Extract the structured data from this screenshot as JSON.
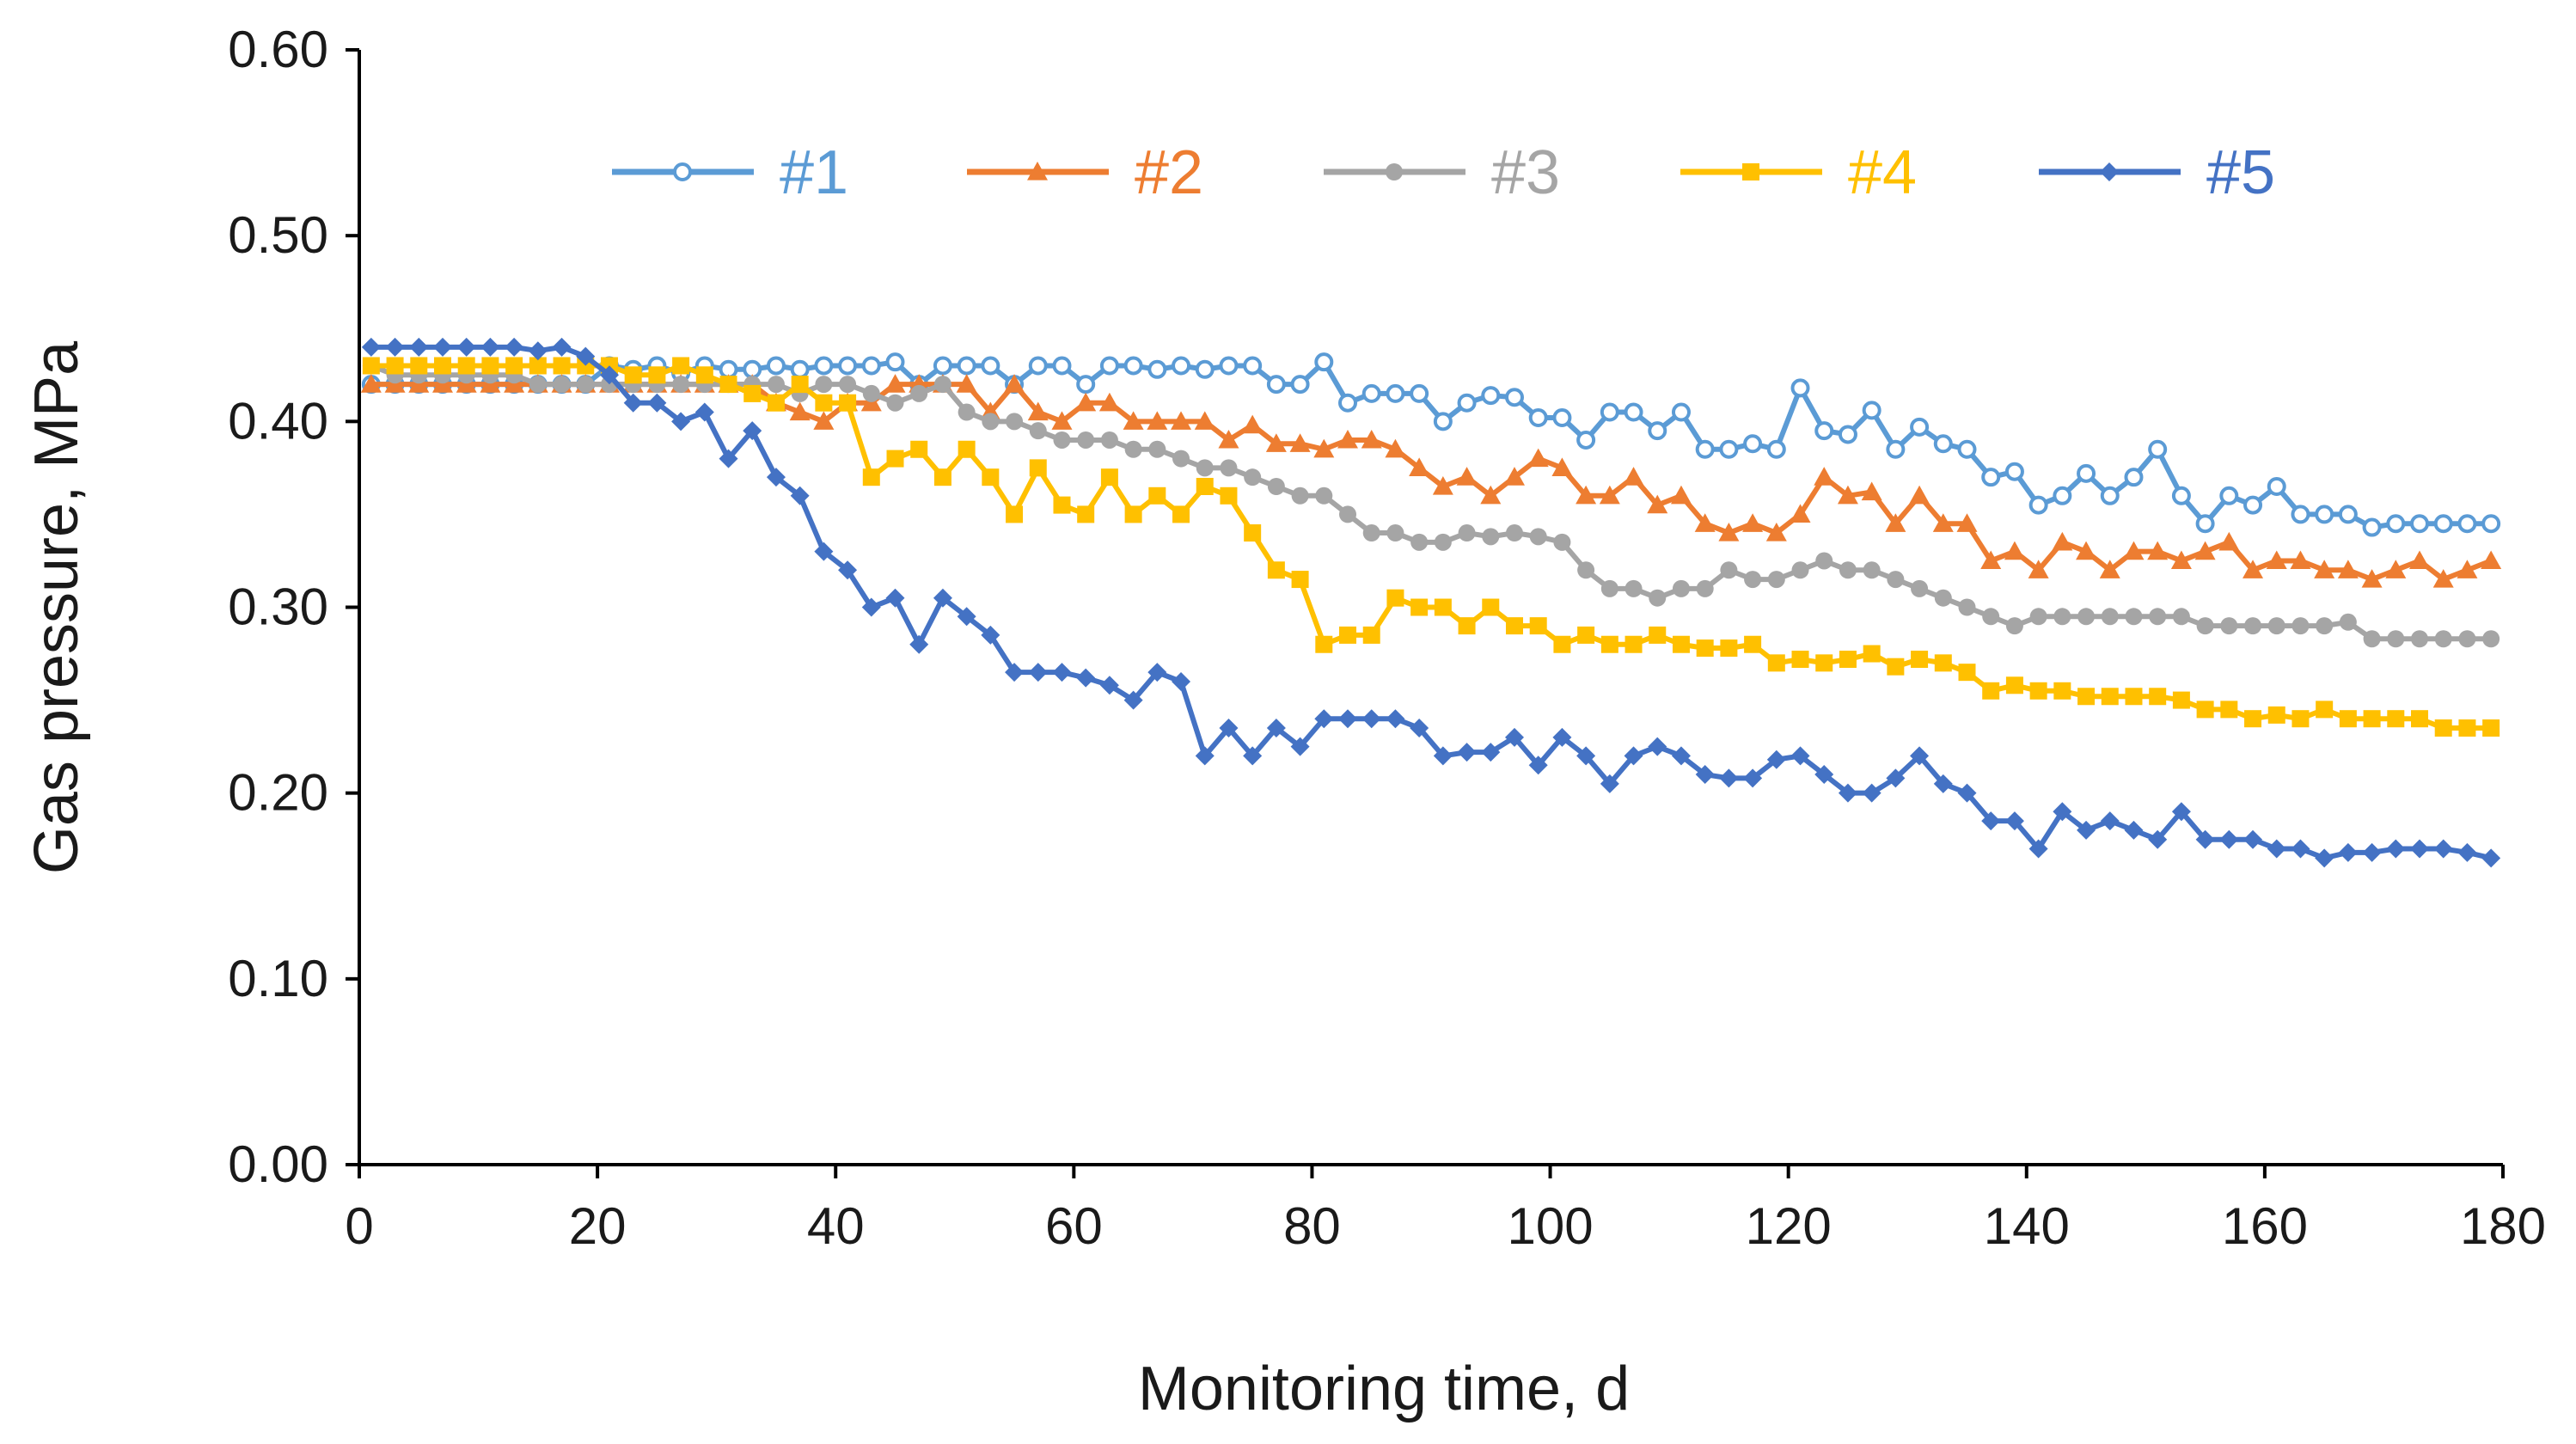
{
  "chart_data": {
    "type": "line",
    "title": "",
    "xlabel": "Monitoring time, d",
    "ylabel": "Gas pressure, MPa",
    "xlim": [
      0,
      180
    ],
    "ylim": [
      0,
      0.6
    ],
    "xticks": [
      0,
      20,
      40,
      60,
      80,
      100,
      120,
      140,
      160,
      180
    ],
    "xtick_labels": [
      "0",
      "20",
      "40",
      "60",
      "80",
      "100",
      "120",
      "140",
      "160",
      "180"
    ],
    "yticks": [
      0,
      0.1,
      0.2,
      0.3,
      0.4,
      0.5,
      0.6
    ],
    "ytick_labels": [
      "0.00",
      "0.10",
      "0.20",
      "0.30",
      "0.40",
      "0.50",
      "0.60"
    ],
    "grid": false,
    "legend_position": "top",
    "x": [
      1,
      3,
      5,
      7,
      9,
      11,
      13,
      15,
      17,
      19,
      21,
      23,
      25,
      27,
      29,
      31,
      33,
      35,
      37,
      39,
      41,
      43,
      45,
      47,
      49,
      51,
      53,
      55,
      57,
      59,
      61,
      63,
      65,
      67,
      69,
      71,
      73,
      75,
      77,
      79,
      81,
      83,
      85,
      87,
      89,
      91,
      93,
      95,
      97,
      99,
      101,
      103,
      105,
      107,
      109,
      111,
      113,
      115,
      117,
      119,
      121,
      123,
      125,
      127,
      129,
      131,
      133,
      135,
      137,
      139,
      141,
      143,
      145,
      147,
      149,
      151,
      153,
      155,
      157,
      159,
      161,
      163,
      165,
      167,
      169,
      171,
      173,
      175,
      177,
      179
    ],
    "series": [
      {
        "name": "#1",
        "color": "#5b9bd5",
        "marker": "open-circle",
        "values": [
          0.42,
          0.42,
          0.42,
          0.42,
          0.42,
          0.42,
          0.42,
          0.42,
          0.42,
          0.42,
          0.43,
          0.428,
          0.43,
          0.426,
          0.43,
          0.428,
          0.428,
          0.43,
          0.428,
          0.43,
          0.43,
          0.43,
          0.432,
          0.42,
          0.43,
          0.43,
          0.43,
          0.42,
          0.43,
          0.43,
          0.42,
          0.43,
          0.43,
          0.428,
          0.43,
          0.428,
          0.43,
          0.43,
          0.42,
          0.42,
          0.432,
          0.41,
          0.415,
          0.415,
          0.415,
          0.4,
          0.41,
          0.414,
          0.413,
          0.402,
          0.402,
          0.39,
          0.405,
          0.405,
          0.395,
          0.405,
          0.385,
          0.385,
          0.388,
          0.385,
          0.418,
          0.395,
          0.393,
          0.406,
          0.385,
          0.397,
          0.388,
          0.385,
          0.37,
          0.373,
          0.355,
          0.36,
          0.372,
          0.36,
          0.37,
          0.385,
          0.36,
          0.345,
          0.36,
          0.355,
          0.365,
          0.35,
          0.35,
          0.35,
          0.343,
          0.345,
          0.345,
          0.345,
          0.345,
          0.345
        ]
      },
      {
        "name": "#2",
        "color": "#ed7d31",
        "marker": "triangle",
        "values": [
          0.42,
          0.42,
          0.42,
          0.42,
          0.42,
          0.42,
          0.42,
          0.42,
          0.42,
          0.42,
          0.42,
          0.42,
          0.42,
          0.42,
          0.42,
          0.42,
          0.42,
          0.41,
          0.405,
          0.4,
          0.41,
          0.41,
          0.42,
          0.42,
          0.42,
          0.42,
          0.405,
          0.42,
          0.405,
          0.4,
          0.41,
          0.41,
          0.4,
          0.4,
          0.4,
          0.4,
          0.39,
          0.398,
          0.388,
          0.388,
          0.385,
          0.39,
          0.39,
          0.385,
          0.375,
          0.365,
          0.37,
          0.36,
          0.37,
          0.38,
          0.375,
          0.36,
          0.36,
          0.37,
          0.355,
          0.36,
          0.345,
          0.34,
          0.345,
          0.34,
          0.35,
          0.37,
          0.36,
          0.362,
          0.345,
          0.36,
          0.345,
          0.345,
          0.325,
          0.33,
          0.32,
          0.335,
          0.33,
          0.32,
          0.33,
          0.33,
          0.325,
          0.33,
          0.335,
          0.32,
          0.325,
          0.325,
          0.32,
          0.32,
          0.315,
          0.32,
          0.325,
          0.315,
          0.32,
          0.325
        ]
      },
      {
        "name": "#3",
        "color": "#a5a5a5",
        "marker": "filled-circle",
        "values": [
          0.43,
          0.425,
          0.425,
          0.425,
          0.425,
          0.425,
          0.425,
          0.42,
          0.42,
          0.42,
          0.42,
          0.42,
          0.42,
          0.42,
          0.42,
          0.42,
          0.42,
          0.42,
          0.415,
          0.42,
          0.42,
          0.415,
          0.41,
          0.415,
          0.42,
          0.405,
          0.4,
          0.4,
          0.395,
          0.39,
          0.39,
          0.39,
          0.385,
          0.385,
          0.38,
          0.375,
          0.375,
          0.37,
          0.365,
          0.36,
          0.36,
          0.35,
          0.34,
          0.34,
          0.335,
          0.335,
          0.34,
          0.338,
          0.34,
          0.338,
          0.335,
          0.32,
          0.31,
          0.31,
          0.305,
          0.31,
          0.31,
          0.32,
          0.315,
          0.315,
          0.32,
          0.325,
          0.32,
          0.32,
          0.315,
          0.31,
          0.305,
          0.3,
          0.295,
          0.29,
          0.295,
          0.295,
          0.295,
          0.295,
          0.295,
          0.295,
          0.295,
          0.29,
          0.29,
          0.29,
          0.29,
          0.29,
          0.29,
          0.292,
          0.283,
          0.283,
          0.283,
          0.283,
          0.283,
          0.283
        ]
      },
      {
        "name": "#4",
        "color": "#ffc000",
        "marker": "square",
        "values": [
          0.43,
          0.43,
          0.43,
          0.43,
          0.43,
          0.43,
          0.43,
          0.43,
          0.43,
          0.43,
          0.43,
          0.425,
          0.425,
          0.43,
          0.425,
          0.42,
          0.415,
          0.41,
          0.42,
          0.41,
          0.41,
          0.37,
          0.38,
          0.385,
          0.37,
          0.385,
          0.37,
          0.35,
          0.375,
          0.355,
          0.35,
          0.37,
          0.35,
          0.36,
          0.35,
          0.365,
          0.36,
          0.34,
          0.32,
          0.315,
          0.28,
          0.285,
          0.285,
          0.305,
          0.3,
          0.3,
          0.29,
          0.3,
          0.29,
          0.29,
          0.28,
          0.285,
          0.28,
          0.28,
          0.285,
          0.28,
          0.278,
          0.278,
          0.28,
          0.27,
          0.272,
          0.27,
          0.272,
          0.275,
          0.268,
          0.272,
          0.27,
          0.265,
          0.255,
          0.258,
          0.255,
          0.255,
          0.252,
          0.252,
          0.252,
          0.252,
          0.25,
          0.245,
          0.245,
          0.24,
          0.242,
          0.24,
          0.245,
          0.24,
          0.24,
          0.24,
          0.24,
          0.235,
          0.235,
          0.235
        ]
      },
      {
        "name": "#5",
        "color": "#4472c4",
        "marker": "diamond",
        "values": [
          0.44,
          0.44,
          0.44,
          0.44,
          0.44,
          0.44,
          0.44,
          0.438,
          0.44,
          0.435,
          0.425,
          0.41,
          0.41,
          0.4,
          0.405,
          0.38,
          0.395,
          0.37,
          0.36,
          0.33,
          0.32,
          0.3,
          0.305,
          0.28,
          0.305,
          0.295,
          0.285,
          0.265,
          0.265,
          0.265,
          0.262,
          0.258,
          0.25,
          0.265,
          0.26,
          0.22,
          0.235,
          0.22,
          0.235,
          0.225,
          0.24,
          0.24,
          0.24,
          0.24,
          0.235,
          0.22,
          0.222,
          0.222,
          0.23,
          0.215,
          0.23,
          0.22,
          0.205,
          0.22,
          0.225,
          0.22,
          0.21,
          0.208,
          0.208,
          0.218,
          0.22,
          0.21,
          0.2,
          0.2,
          0.208,
          0.22,
          0.205,
          0.2,
          0.185,
          0.185,
          0.17,
          0.19,
          0.18,
          0.185,
          0.18,
          0.175,
          0.19,
          0.175,
          0.175,
          0.175,
          0.17,
          0.17,
          0.165,
          0.168,
          0.168,
          0.17,
          0.17,
          0.17,
          0.168,
          0.165
        ]
      }
    ]
  }
}
